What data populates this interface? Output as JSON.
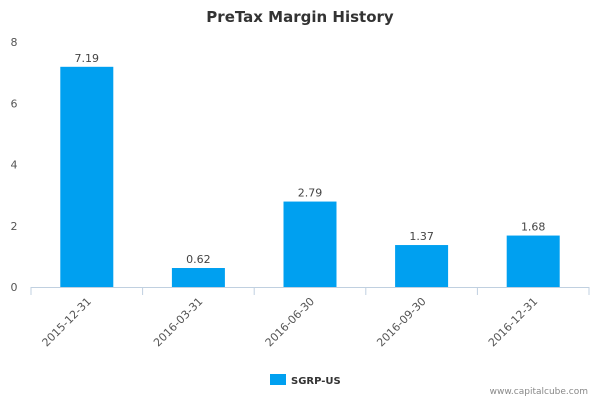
{
  "chart_data": {
    "type": "bar",
    "title": "PreTax Margin History",
    "categories": [
      "2015-12-31",
      "2016-03-31",
      "2016-06-30",
      "2016-09-30",
      "2016-12-31"
    ],
    "series": [
      {
        "name": "SGRP-US",
        "values": [
          7.19,
          0.62,
          2.79,
          1.37,
          1.68
        ],
        "color": "#00a0f0"
      }
    ],
    "data_labels": [
      "7.19",
      "0.62",
      "2.79",
      "1.37",
      "1.68"
    ],
    "yticks": [
      0,
      2,
      4,
      6,
      8
    ],
    "ylim": [
      0,
      8
    ],
    "grid": false,
    "legend_position": "bottom-center"
  },
  "watermark": "www.capitalcube.com"
}
